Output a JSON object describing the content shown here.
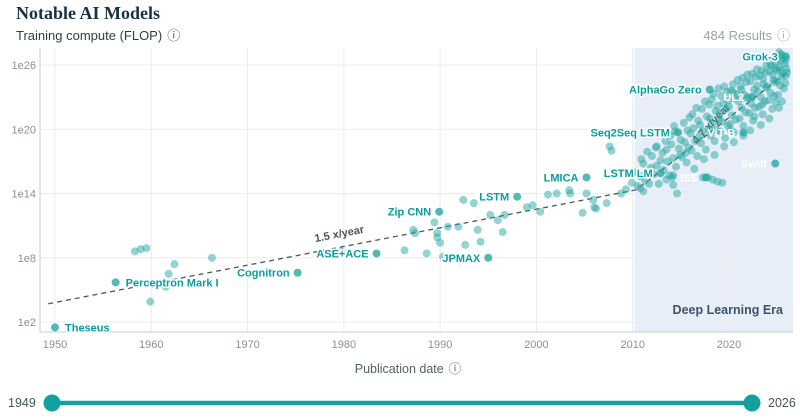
{
  "header": {
    "title": "Notable AI Models",
    "y_axis_title": "Training compute (FLOP)",
    "results_label": "484 Results"
  },
  "icons": {
    "info": "ⓘ"
  },
  "colors": {
    "point": "#27a7a4",
    "label_teal": "#089da1",
    "label_white": "#ffffff",
    "era_fill": "#e8eef7",
    "era_text": "#3e5168",
    "grid": "#e8edf0",
    "axis_line": "#c4ccd1",
    "tick_text": "#879297",
    "trend": "#4b555d",
    "slider": "#12a19e",
    "slider_text": "#48535b"
  },
  "footer": {
    "x_axis_label": "Publication date",
    "slider": {
      "min_label": "1949",
      "max_label": "2026"
    }
  },
  "chart_data": {
    "type": "scatter",
    "title": "Notable AI Models",
    "xlabel": "Publication date",
    "ylabel": "Training compute (FLOP)",
    "x_range": [
      1949,
      2026.5
    ],
    "y_range_exp": [
      1,
      27.5
    ],
    "x_ticks": [
      1950,
      1960,
      1970,
      1980,
      1990,
      2000,
      2010,
      2020
    ],
    "y_ticks": [
      {
        "exp": 2,
        "label": "1e2"
      },
      {
        "exp": 8,
        "label": "1e8"
      },
      {
        "exp": 14,
        "label": "1e14"
      },
      {
        "exp": 20,
        "label": "1e20"
      },
      {
        "exp": 26,
        "label": "1e26"
      }
    ],
    "era": {
      "label": "Deep Learning Era",
      "start_year": 2010.2
    },
    "trend": {
      "points": [
        [
          1949.3,
          3.7
        ],
        [
          2010.4,
          14.35
        ],
        [
          2026.3,
          25.5
        ]
      ],
      "annotations": [
        {
          "text": "1.5 x/year",
          "year": 1979.6,
          "exp": 9.9,
          "angle": -11
        },
        {
          "text": "4.7 x/year",
          "year": 2018.4,
          "exp": 20.3,
          "angle": -47
        }
      ]
    },
    "labeled_models": [
      {
        "name": "Theseus",
        "year": 1950.0,
        "exp": 1.5,
        "side": "right",
        "variant": "teal"
      },
      {
        "name": "Perceptron Mark I",
        "year": 1956.3,
        "exp": 5.7,
        "side": "right",
        "variant": "teal"
      },
      {
        "name": "Cognitron",
        "year": 1975.2,
        "exp": 6.6,
        "side": "left",
        "variant": "teal"
      },
      {
        "name": "ASE+ACE",
        "year": 1983.4,
        "exp": 8.4,
        "side": "left",
        "variant": "teal"
      },
      {
        "name": "Zip CNN",
        "year": 1989.9,
        "exp": 12.3,
        "side": "left",
        "variant": "teal"
      },
      {
        "name": "JPMAX",
        "year": 1995.0,
        "exp": 8.0,
        "side": "left",
        "variant": "teal"
      },
      {
        "name": "LSTM",
        "year": 1998.0,
        "exp": 13.7,
        "side": "left",
        "variant": "teal"
      },
      {
        "name": "LMICA",
        "year": 2005.2,
        "exp": 15.5,
        "side": "left",
        "variant": "teal"
      },
      {
        "name": "LSTM LM",
        "year": 2012.9,
        "exp": 15.9,
        "side": "left",
        "variant": "teal"
      },
      {
        "name": "Seq2Seq LSTM",
        "year": 2014.7,
        "exp": 19.7,
        "side": "left",
        "variant": "teal"
      },
      {
        "name": "AlphaGo Zero",
        "year": 2018.0,
        "exp": 23.7,
        "side": "left",
        "variant": "teal"
      },
      {
        "name": "UL2",
        "year": 2022.4,
        "exp": 23.0,
        "side": "left",
        "variant": "white"
      },
      {
        "name": "ViT-B",
        "year": 2021.5,
        "exp": 19.7,
        "side": "left",
        "variant": "white"
      },
      {
        "name": "ISS",
        "year": 2017.6,
        "exp": 15.5,
        "side": "left",
        "variant": "white"
      },
      {
        "name": "Swift",
        "year": 2024.8,
        "exp": 16.8,
        "side": "left",
        "variant": "white"
      },
      {
        "name": "Grok-3",
        "year": 2025.9,
        "exp": 26.8,
        "side": "left",
        "variant": "teal"
      }
    ],
    "points": [
      [
        1958.3,
        8.6
      ],
      [
        1958.9,
        8.8
      ],
      [
        1959.5,
        8.9
      ],
      [
        1959.9,
        3.9
      ],
      [
        1961.5,
        5.3
      ],
      [
        1961.8,
        6.5
      ],
      [
        1962.4,
        7.4
      ],
      [
        1966.3,
        8.0
      ],
      [
        1979.7,
        8.6
      ],
      [
        1986.3,
        8.7
      ],
      [
        1987.2,
        10.6
      ],
      [
        1987.4,
        10.3
      ],
      [
        1988.6,
        8.4
      ],
      [
        1989.4,
        11.3
      ],
      [
        1989.7,
        9.9
      ],
      [
        1989.7,
        10.3
      ],
      [
        1990.0,
        9.4
      ],
      [
        1990.3,
        8.1
      ],
      [
        1990.8,
        10.9
      ],
      [
        1991.9,
        10.9
      ],
      [
        1992.4,
        13.4
      ],
      [
        1992.6,
        9.2
      ],
      [
        1993.5,
        13.1
      ],
      [
        1993.9,
        10.6
      ],
      [
        1994.2,
        9.5
      ],
      [
        1995.2,
        12.0
      ],
      [
        1996.0,
        11.5
      ],
      [
        1996.5,
        10.4
      ],
      [
        1996.7,
        12.0
      ],
      [
        1999.0,
        12.7
      ],
      [
        1999.6,
        12.9
      ],
      [
        2000.4,
        12.3
      ],
      [
        2001.2,
        13.9
      ],
      [
        2002.1,
        14.0
      ],
      [
        2003.4,
        14.3
      ],
      [
        2003.5,
        14.0
      ],
      [
        2004.8,
        12.2
      ],
      [
        2005.2,
        14.0
      ],
      [
        2005.9,
        13.4
      ],
      [
        2006.0,
        12.7
      ],
      [
        2006.2,
        12.6
      ],
      [
        2007.3,
        13.1
      ],
      [
        2007.6,
        18.4
      ],
      [
        2007.8,
        18.0
      ],
      [
        2008.8,
        14.0
      ],
      [
        2009.3,
        14.4
      ],
      [
        2009.9,
        15.0
      ],
      [
        2010.2,
        16.0
      ],
      [
        2010.5,
        14.7
      ],
      [
        2010.8,
        15.6
      ],
      [
        2010.8,
        14.5
      ],
      [
        2010.9,
        17.2
      ],
      [
        2011.1,
        16.8
      ],
      [
        2011.1,
        14.2
      ],
      [
        2011.3,
        15.2
      ],
      [
        2011.5,
        17.9
      ],
      [
        2011.7,
        14.9
      ],
      [
        2011.9,
        16.4
      ],
      [
        2012.0,
        17.5
      ],
      [
        2012.2,
        15.8
      ],
      [
        2012.4,
        18.3
      ],
      [
        2012.5,
        16.6
      ],
      [
        2012.5,
        18.4
      ],
      [
        2012.7,
        14.9
      ],
      [
        2012.9,
        17.1
      ],
      [
        2013.1,
        17.8
      ],
      [
        2013.2,
        16.2
      ],
      [
        2013.4,
        18.9
      ],
      [
        2013.5,
        15.3
      ],
      [
        2013.5,
        18.1
      ],
      [
        2013.6,
        17.0
      ],
      [
        2013.8,
        15.7
      ],
      [
        2013.9,
        19.4
      ],
      [
        2014.0,
        18.6
      ],
      [
        2014.1,
        15.5
      ],
      [
        2014.2,
        17.3
      ],
      [
        2014.2,
        15.7
      ],
      [
        2014.2,
        14.8
      ],
      [
        2014.3,
        20.3
      ],
      [
        2014.4,
        19.8
      ],
      [
        2014.5,
        16.5
      ],
      [
        2014.6,
        14.0
      ],
      [
        2014.8,
        18.2
      ],
      [
        2014.9,
        17.6
      ],
      [
        2015.0,
        19.0
      ],
      [
        2015.1,
        17.4
      ],
      [
        2015.3,
        20.6
      ],
      [
        2015.4,
        18.8
      ],
      [
        2015.5,
        17.8
      ],
      [
        2015.6,
        16.9
      ],
      [
        2015.7,
        19.9
      ],
      [
        2015.8,
        18.3
      ],
      [
        2015.9,
        21.1
      ],
      [
        2016.0,
        19.6
      ],
      [
        2016.1,
        18.0
      ],
      [
        2016.2,
        21.4
      ],
      [
        2016.3,
        20.1
      ],
      [
        2016.4,
        16.3
      ],
      [
        2016.5,
        18.9
      ],
      [
        2016.6,
        22.0
      ],
      [
        2016.7,
        17.5
      ],
      [
        2016.8,
        20.8
      ],
      [
        2016.9,
        19.3
      ],
      [
        2017.0,
        20.4
      ],
      [
        2017.1,
        18.7
      ],
      [
        2017.2,
        21.9
      ],
      [
        2017.3,
        19.8
      ],
      [
        2017.3,
        15.5
      ],
      [
        2017.4,
        17.2
      ],
      [
        2017.5,
        22.6
      ],
      [
        2017.6,
        18.1
      ],
      [
        2017.7,
        21.2
      ],
      [
        2017.8,
        15.5
      ],
      [
        2017.9,
        20.0
      ],
      [
        2017.95,
        22.3
      ],
      [
        2018.0,
        21.0
      ],
      [
        2018.1,
        19.4
      ],
      [
        2018.2,
        22.8
      ],
      [
        2018.3,
        20.5
      ],
      [
        2018.3,
        15.3
      ],
      [
        2018.4,
        23.3
      ],
      [
        2018.5,
        18.9
      ],
      [
        2018.5,
        17.6
      ],
      [
        2018.6,
        21.7
      ],
      [
        2018.7,
        19.9
      ],
      [
        2018.8,
        22.2
      ],
      [
        2018.8,
        15.1
      ],
      [
        2018.9,
        23.8
      ],
      [
        2018.95,
        20.9
      ],
      [
        2019.0,
        21.5
      ],
      [
        2019.1,
        19.8
      ],
      [
        2019.2,
        23.1
      ],
      [
        2019.3,
        20.7
      ],
      [
        2019.3,
        15.0
      ],
      [
        2019.4,
        22.4
      ],
      [
        2019.5,
        24.0
      ],
      [
        2019.5,
        18.4
      ],
      [
        2019.6,
        19.2
      ],
      [
        2019.7,
        21.9
      ],
      [
        2019.8,
        23.5
      ],
      [
        2019.9,
        20.3
      ],
      [
        2019.95,
        22.7
      ],
      [
        2020.0,
        22.1
      ],
      [
        2020.1,
        20.5
      ],
      [
        2020.2,
        23.6
      ],
      [
        2020.2,
        19.9
      ],
      [
        2020.3,
        21.3
      ],
      [
        2020.4,
        24.2
      ],
      [
        2020.4,
        23.5
      ],
      [
        2020.5,
        19.7
      ],
      [
        2020.5,
        18.8
      ],
      [
        2020.6,
        22.9
      ],
      [
        2020.7,
        20.9
      ],
      [
        2020.8,
        23.3
      ],
      [
        2020.9,
        24.6
      ],
      [
        2021.0,
        22.6
      ],
      [
        2021.1,
        21.0
      ],
      [
        2021.2,
        24.0
      ],
      [
        2021.3,
        22.0
      ],
      [
        2021.3,
        23.7
      ],
      [
        2021.4,
        24.8
      ],
      [
        2021.5,
        20.3
      ],
      [
        2021.5,
        19.4
      ],
      [
        2021.6,
        23.2
      ],
      [
        2021.7,
        21.6
      ],
      [
        2021.8,
        24.4
      ],
      [
        2021.85,
        22.9
      ],
      [
        2021.9,
        25.1
      ],
      [
        2022.0,
        23.0
      ],
      [
        2022.1,
        21.5
      ],
      [
        2022.2,
        24.5
      ],
      [
        2022.2,
        19.9
      ],
      [
        2022.3,
        22.4
      ],
      [
        2022.4,
        25.2
      ],
      [
        2022.5,
        20.8
      ],
      [
        2022.6,
        23.7
      ],
      [
        2022.65,
        21.2
      ],
      [
        2022.7,
        22.0
      ],
      [
        2022.8,
        24.9
      ],
      [
        2022.9,
        25.6
      ],
      [
        2022.9,
        24.1
      ],
      [
        2023.0,
        23.5
      ],
      [
        2023.1,
        22.1
      ],
      [
        2023.2,
        25.0
      ],
      [
        2023.3,
        23.0
      ],
      [
        2023.3,
        20.4
      ],
      [
        2023.4,
        25.5
      ],
      [
        2023.45,
        22.3
      ],
      [
        2023.5,
        21.4
      ],
      [
        2023.55,
        24.7
      ],
      [
        2023.6,
        24.2
      ],
      [
        2023.7,
        22.6
      ],
      [
        2023.8,
        25.3
      ],
      [
        2023.85,
        23.9
      ],
      [
        2023.9,
        26.0
      ],
      [
        2024.0,
        24.0
      ],
      [
        2024.1,
        22.7
      ],
      [
        2024.2,
        25.4
      ],
      [
        2024.2,
        21.0
      ],
      [
        2024.3,
        23.4
      ],
      [
        2024.3,
        26.1
      ],
      [
        2024.4,
        25.9
      ],
      [
        2024.5,
        21.9
      ],
      [
        2024.55,
        25.1
      ],
      [
        2024.6,
        24.6
      ],
      [
        2024.7,
        23.1
      ],
      [
        2024.75,
        24.4
      ],
      [
        2024.8,
        25.7
      ],
      [
        2024.85,
        22.5
      ],
      [
        2024.9,
        26.3
      ],
      [
        2024.95,
        25.5
      ],
      [
        2025.0,
        24.5
      ],
      [
        2025.1,
        23.2
      ],
      [
        2025.2,
        25.8
      ],
      [
        2025.2,
        22.0
      ],
      [
        2025.2,
        27.2
      ],
      [
        2025.3,
        24.1
      ],
      [
        2025.3,
        25.5
      ],
      [
        2025.4,
        26.4
      ],
      [
        2025.4,
        27.0
      ],
      [
        2025.45,
        24.9
      ],
      [
        2025.5,
        22.6
      ],
      [
        2025.5,
        26.9
      ],
      [
        2025.6,
        25.2
      ],
      [
        2025.65,
        26.6
      ],
      [
        2025.7,
        23.8
      ],
      [
        2025.8,
        26.1
      ],
      [
        2025.85,
        24.3
      ],
      [
        2025.9,
        25.0
      ],
      [
        2025.9,
        26.5
      ],
      [
        2025.95,
        25.7
      ],
      [
        2026.0,
        25.3
      ]
    ]
  }
}
